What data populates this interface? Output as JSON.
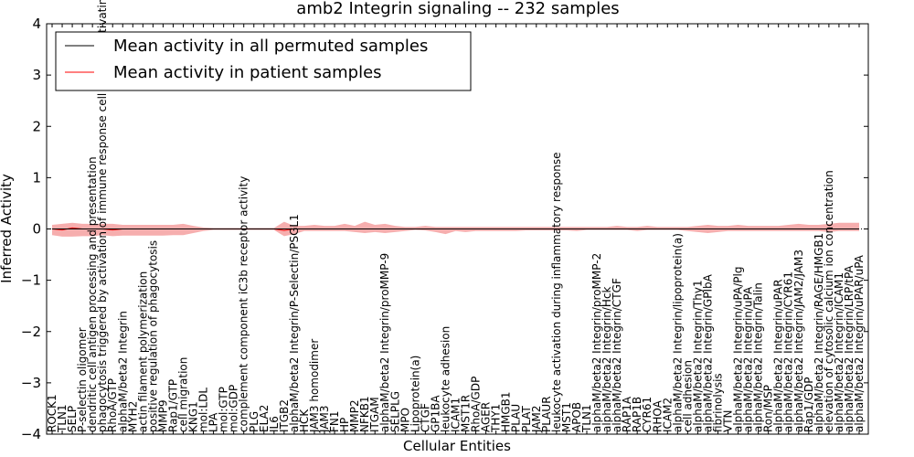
{
  "chart_data": {
    "type": "line",
    "title": "amb2 Integrin signaling -- 232 samples",
    "xlabel": "Cellular Entities",
    "ylabel": "Inferred Activity",
    "ylim": [
      -4,
      4
    ],
    "yticks": [
      -4,
      -3,
      -2,
      -1,
      0,
      1,
      2,
      3,
      4
    ],
    "legend_position": "top-left",
    "grid": false,
    "categories": [
      "ROCK1",
      "TLN1",
      "SELP",
      "P-selectin oligomer",
      "dendritic cell antigen processing and presentation",
      "phagocytosis triggered by activation of immune response cell surface activating receptor",
      "RhoA/GTP",
      "alphaM/beta2 Integrin",
      "MYH2",
      "actin filament polymerization",
      "positive regulation of phagocytosis",
      "MMP9",
      "Rap1/GTP",
      "cell migration",
      "KNG1",
      "mol:LDL",
      "LPA",
      "mol:GTP",
      "mol:GDP",
      "complement component iC3b receptor activity",
      "PLG",
      "ELA2",
      "IL6",
      "ITGB2",
      "alphaM/beta2 Integrin/P-Selectin/PSGL1",
      "HCK",
      "JAM3 homodimer",
      "JAM3",
      "FN1",
      "HP",
      "MMP2",
      "NFKB1",
      "ITGAM",
      "alphaM/beta2 Integrin/proMMP-9",
      "SELPLG",
      "MPO",
      "Lipoprotein(a)",
      "CTGF",
      "GP1BA",
      "leukocyte adhesion",
      "ICAM1",
      "MST1R",
      "RhoA/GDP",
      "AGER",
      "THY1",
      "HMGB1",
      "PLAU",
      "PLAT",
      "JAM2",
      "PLAUR",
      "leukocyte activation during inflammatory response",
      "MST1",
      "APOB",
      "TLN1",
      "alphaM/beta2 Integrin/proMMP-2",
      "alphaM/beta2 Integrin/Hck",
      "alphaM/beta2 Integrin/CTGF",
      "RAP1A",
      "RAP1B",
      "CYR61",
      "RHOA",
      "ICAM2",
      "alphaM/beta2 Integrin/lipoprotein(a)",
      "cell adhesion",
      "alphaM/beta2 Integrin/Thy1",
      "alphaM/beta2 Integrin/GPIbA",
      "fibrinolysis",
      "VTN",
      "alphaM/beta2 Integrin/uPA/Plg",
      "alphaM/beta2 Integrin/uPA",
      "alphaM/beta2 Integrin/Talin",
      "Ron/MSP",
      "alphaM/beta2 Integrin/uPAR",
      "alphaM/beta2 Integrin/CYR61",
      "alphaM/beta2 Integrin/JAM2/JAM3",
      "Rap1/GDP",
      "alphaM/beta2 Integrin/RAGE/HMGB1",
      "elevation of cytosolic calcium ion concentration",
      "alphaM/beta2 Integrin/ICAM1",
      "alphaM/beta2 Integrin/LRP/tPA",
      "alphaM/beta2 Integrin/uPAR/uPA"
    ],
    "series": [
      {
        "name": "Mean activity in all permuted samples",
        "color": "#000000",
        "values": [
          0,
          0,
          0,
          0,
          0,
          0,
          0,
          0,
          0,
          0,
          0,
          0,
          0,
          0,
          0,
          0,
          0,
          0,
          0,
          0,
          0,
          0,
          0,
          0,
          0,
          0,
          0,
          0,
          0,
          0,
          0,
          0,
          0,
          0,
          0,
          0,
          0,
          0,
          0,
          0,
          0,
          0,
          0,
          0,
          0,
          0,
          0,
          0,
          0,
          0,
          0,
          0,
          0,
          0,
          0,
          0,
          0,
          0,
          0,
          0,
          0,
          0,
          0,
          0,
          0,
          0,
          0,
          0,
          0,
          0,
          0,
          0,
          0,
          0,
          0,
          0,
          0,
          0,
          0,
          0,
          0
        ]
      },
      {
        "name": "Mean activity in patient samples",
        "color": "#ff0000",
        "band_color": "#f4a0a0",
        "values": [
          0,
          -0.02,
          0.02,
          0,
          0,
          0,
          -0.02,
          0,
          0,
          0,
          0,
          0,
          0,
          0,
          0,
          0,
          0,
          0,
          0,
          0,
          0,
          0,
          0,
          -0.03,
          0,
          0,
          0,
          0,
          0,
          0,
          0,
          0,
          0,
          0,
          0,
          0,
          0,
          0,
          0,
          0,
          0,
          0,
          0,
          0,
          0,
          0,
          0,
          0,
          0,
          0,
          0,
          0,
          0,
          0,
          0,
          0,
          0,
          0,
          0,
          0,
          0,
          0,
          0,
          0,
          0,
          0,
          0,
          0,
          0,
          0,
          0,
          0,
          0,
          0,
          0,
          0,
          0,
          0,
          0,
          0,
          0
        ],
        "lower": [
          -0.12,
          -0.15,
          -0.15,
          -0.14,
          -0.14,
          -0.12,
          -0.14,
          -0.13,
          -0.13,
          -0.13,
          -0.13,
          -0.13,
          -0.12,
          -0.12,
          -0.08,
          -0.04,
          -0.02,
          -0.02,
          -0.02,
          -0.02,
          -0.02,
          -0.02,
          -0.02,
          -0.14,
          -0.1,
          -0.04,
          -0.04,
          -0.04,
          -0.04,
          -0.04,
          -0.06,
          -0.08,
          -0.06,
          -0.08,
          -0.06,
          -0.04,
          -0.02,
          -0.03,
          -0.06,
          -0.1,
          -0.04,
          -0.06,
          -0.04,
          -0.04,
          -0.04,
          -0.04,
          -0.04,
          -0.03,
          -0.03,
          -0.03,
          -0.03,
          -0.03,
          -0.04,
          -0.02,
          -0.02,
          -0.02,
          -0.02,
          -0.02,
          -0.04,
          -0.02,
          -0.02,
          -0.02,
          -0.02,
          -0.04,
          -0.06,
          -0.08,
          -0.06,
          -0.04,
          -0.04,
          -0.04,
          -0.04,
          -0.04,
          -0.04,
          -0.04,
          -0.04,
          -0.04,
          -0.04,
          -0.06,
          -0.04,
          -0.04,
          -0.04
        ],
        "upper": [
          0.08,
          0.1,
          0.12,
          0.1,
          0.1,
          0.1,
          0.1,
          0.08,
          0.08,
          0.08,
          0.08,
          0.08,
          0.08,
          0.1,
          0.06,
          0.03,
          0.02,
          0.02,
          0.02,
          0.02,
          0.02,
          0.02,
          0.02,
          0.14,
          0.06,
          0.06,
          0.08,
          0.06,
          0.06,
          0.1,
          0.06,
          0.14,
          0.08,
          0.1,
          0.06,
          0.04,
          0.04,
          0.06,
          0.04,
          0.04,
          0.04,
          0.04,
          0.04,
          0.04,
          0.04,
          0.04,
          0.04,
          0.04,
          0.04,
          0.04,
          0.04,
          0.04,
          0.04,
          0.04,
          0.04,
          0.04,
          0.06,
          0.04,
          0.04,
          0.06,
          0.04,
          0.04,
          0.04,
          0.04,
          0.06,
          0.08,
          0.06,
          0.06,
          0.08,
          0.06,
          0.06,
          0.06,
          0.06,
          0.08,
          0.1,
          0.08,
          0.08,
          0.1,
          0.12,
          0.12,
          0.12
        ]
      }
    ]
  }
}
